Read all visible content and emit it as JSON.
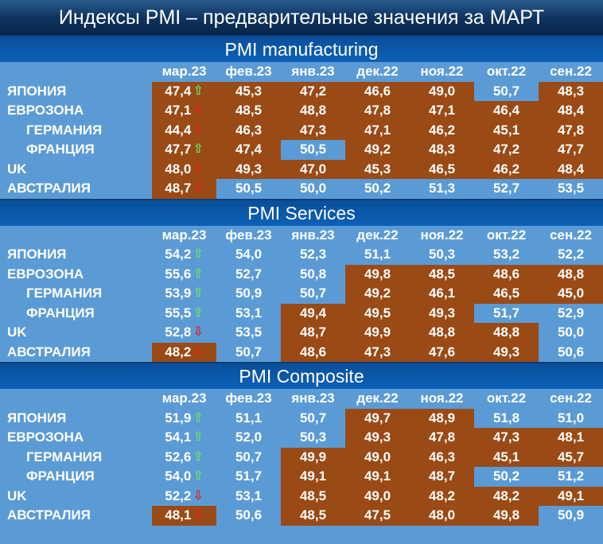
{
  "title": "Индексы PMI – предварительные значения за МАРТ",
  "colors": {
    "above50": "#5b9bd5",
    "below50": "#9a4a15",
    "up": "#66e56a",
    "down": "#e02020",
    "header": "#0c60b8"
  },
  "chart_data": {
    "type": "table",
    "columns": [
      "мар.23",
      "фев.23",
      "янв.23",
      "дек.22",
      "ноя.22",
      "окт.22",
      "сен.22"
    ],
    "sections": [
      {
        "title": "PMI manufacturing",
        "rows": [
          {
            "label": "ЯПОНИЯ",
            "indent": false,
            "values": [
              "47,4",
              "45,3",
              "47,2",
              "46,6",
              "49,0",
              "50,7",
              "48,3"
            ],
            "trend": "up"
          },
          {
            "label": "ЕВРОЗОНА",
            "indent": false,
            "values": [
              "47,1",
              "48,5",
              "48,8",
              "47,8",
              "47,1",
              "46,4",
              "48,4"
            ],
            "trend": "down"
          },
          {
            "label": "ГЕРМАНИЯ",
            "indent": true,
            "values": [
              "44,4",
              "46,3",
              "47,3",
              "47,1",
              "46,2",
              "45,1",
              "47,8"
            ],
            "trend": "down"
          },
          {
            "label": "ФРАНЦИЯ",
            "indent": true,
            "values": [
              "47,7",
              "47,4",
              "50,5",
              "49,2",
              "48,3",
              "47,2",
              "47,7"
            ],
            "trend": "up"
          },
          {
            "label": "UK",
            "indent": false,
            "values": [
              "48,0",
              "49,3",
              "47,0",
              "45,3",
              "46,5",
              "46,2",
              "48,4"
            ],
            "trend": "down"
          },
          {
            "label": "АВСТРАЛИЯ",
            "indent": false,
            "values": [
              "48,7",
              "50,5",
              "50,0",
              "50,2",
              "51,3",
              "52,7",
              "53,5"
            ],
            "trend": "down"
          }
        ]
      },
      {
        "title": "PMI Services",
        "rows": [
          {
            "label": "ЯПОНИЯ",
            "indent": false,
            "values": [
              "54,2",
              "54,0",
              "52,3",
              "51,1",
              "50,3",
              "53,2",
              "52,2"
            ],
            "trend": "up"
          },
          {
            "label": "ЕВРОЗОНА",
            "indent": false,
            "values": [
              "55,6",
              "52,7",
              "50,8",
              "49,8",
              "48,5",
              "48,6",
              "48,8"
            ],
            "trend": "up"
          },
          {
            "label": "ГЕРМАНИЯ",
            "indent": true,
            "values": [
              "53,9",
              "50,9",
              "50,7",
              "49,2",
              "46,1",
              "46,5",
              "45,0"
            ],
            "trend": "up"
          },
          {
            "label": "ФРАНЦИЯ",
            "indent": true,
            "values": [
              "55,5",
              "53,1",
              "49,4",
              "49,5",
              "49,3",
              "51,7",
              "52,9"
            ],
            "trend": "up"
          },
          {
            "label": "UK",
            "indent": false,
            "values": [
              "52,8",
              "53,5",
              "48,7",
              "49,9",
              "48,8",
              "48,8",
              "50,0"
            ],
            "trend": "down"
          },
          {
            "label": "АВСТРАЛИЯ",
            "indent": false,
            "values": [
              "48,2",
              "50,7",
              "48,6",
              "47,3",
              "47,6",
              "49,3",
              "50,6"
            ],
            "trend": "down"
          }
        ]
      },
      {
        "title": "PMI Composite",
        "rows": [
          {
            "label": "ЯПОНИЯ",
            "indent": false,
            "values": [
              "51,9",
              "51,1",
              "50,7",
              "49,7",
              "48,9",
              "51,8",
              "51,0"
            ],
            "trend": "up"
          },
          {
            "label": "ЕВРОЗОНА",
            "indent": false,
            "values": [
              "54,1",
              "52,0",
              "50,3",
              "49,3",
              "47,8",
              "47,3",
              "48,1"
            ],
            "trend": "up"
          },
          {
            "label": "ГЕРМАНИЯ",
            "indent": true,
            "values": [
              "52,6",
              "50,7",
              "49,9",
              "49,0",
              "46,3",
              "45,1",
              "45,7"
            ],
            "trend": "up"
          },
          {
            "label": "ФРАНЦИЯ",
            "indent": true,
            "values": [
              "54,0",
              "51,7",
              "49,1",
              "49,1",
              "48,7",
              "50,2",
              "51,2"
            ],
            "trend": "up"
          },
          {
            "label": "UK",
            "indent": false,
            "values": [
              "52,2",
              "53,1",
              "48,5",
              "49,0",
              "48,2",
              "48,2",
              "49,1"
            ],
            "trend": "down"
          },
          {
            "label": "АВСТРАЛИЯ",
            "indent": false,
            "values": [
              "48,1",
              "50,6",
              "48,5",
              "47,5",
              "48,0",
              "49,8",
              "50,9"
            ],
            "trend": "down"
          }
        ]
      }
    ]
  }
}
